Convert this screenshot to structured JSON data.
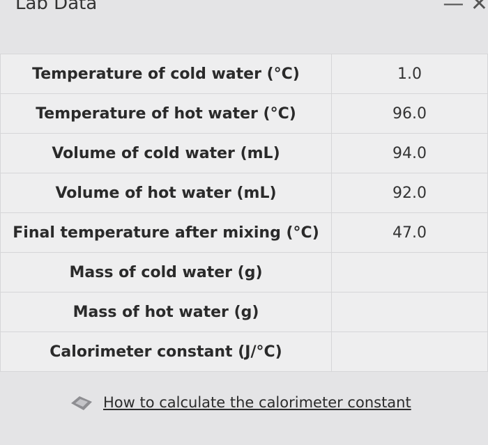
{
  "header": {
    "title": "Lab Data"
  },
  "table": {
    "rows": [
      [
        "Temperature of cold water (°C)",
        "1.0"
      ],
      [
        "Temperature of hot water (°C)",
        "96.0"
      ],
      [
        "Volume of cold water (mL)",
        "94.0"
      ],
      [
        "Volume of hot water (mL)",
        "92.0"
      ],
      [
        "Final temperature after mixing (°C)",
        "47.0"
      ],
      [
        "Mass of cold water (g)",
        null
      ],
      [
        "Mass of hot water (g)",
        null
      ],
      [
        "Calorimeter constant (J/°C)",
        null
      ]
    ]
  },
  "link": {
    "text": "How to calculate the calorimeter constant"
  }
}
